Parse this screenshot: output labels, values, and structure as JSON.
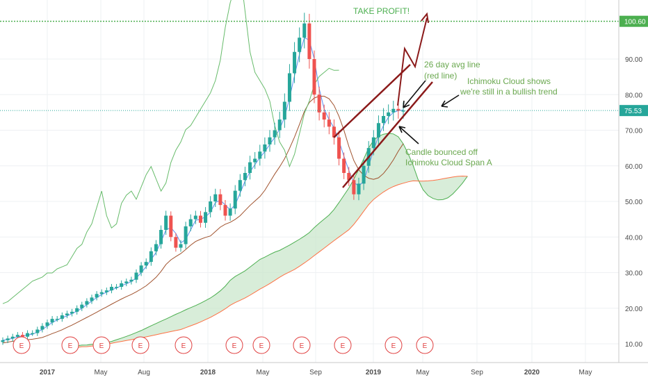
{
  "chart_data": {
    "type": "candlestick",
    "y_axis": {
      "ticks": [
        "10.00",
        "20.00",
        "30.00",
        "40.00",
        "50.00",
        "60.00",
        "70.00",
        "80.00",
        "90.00"
      ],
      "ylim": [
        5,
        103
      ],
      "position": "right"
    },
    "x_axis": {
      "ticks": [
        "2017",
        "May",
        "Aug",
        "2018",
        "May",
        "Sep",
        "2019",
        "May",
        "Sep",
        "2020",
        "May"
      ]
    },
    "price_labels": [
      {
        "text": "100.60",
        "value": 100.6,
        "style": "take-profit"
      },
      {
        "text": "75.53",
        "value": 75.53,
        "style": "current"
      }
    ],
    "earnings_markers": [
      "E",
      "E",
      "E",
      "E",
      "E",
      "E",
      "E",
      "E",
      "E",
      "E",
      "E"
    ],
    "annotations": {
      "take_profit": "TAKE PROFIT!",
      "avg_line_1": "26 day avg line",
      "avg_line_2": "(red line)",
      "cloud_1": "Ichimoku Cloud shows",
      "cloud_2": "we're still in a bullish trend",
      "bounce_1": "Candle bounced off",
      "bounce_2": "Ichimoku Cloud Span A"
    },
    "candles_close_approx": [
      11,
      11.5,
      12,
      12.5,
      12,
      13,
      13,
      14,
      15,
      16,
      17,
      17,
      18,
      18.5,
      19,
      20,
      21,
      22,
      23,
      24,
      24.5,
      25,
      26,
      26,
      27,
      27.5,
      28,
      30,
      32,
      33,
      36,
      38,
      42,
      46,
      40,
      37,
      38,
      43,
      45,
      46,
      44,
      47,
      50,
      52,
      49,
      46,
      48,
      53,
      56,
      58,
      61,
      62,
      64,
      66,
      68,
      70,
      73,
      78,
      86,
      92,
      96,
      100,
      90,
      80,
      75,
      73,
      71,
      68,
      62,
      58,
      56,
      52,
      55,
      60,
      65,
      68,
      72,
      74,
      75,
      76,
      75.5,
      75.53
    ]
  },
  "colors": {
    "up": "#26a69a",
    "down": "#ef5350",
    "take_profit_line": "#4caf50",
    "annotation": "#6aa84f",
    "arrow_dark_red": "#8b1a1a",
    "cloud": "#c8e6c9",
    "badge": "#e04040"
  }
}
